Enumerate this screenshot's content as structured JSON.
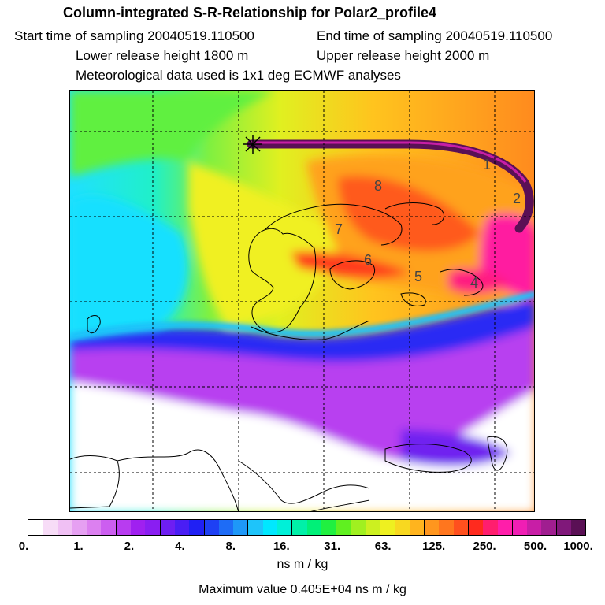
{
  "header": {
    "title": "Column-integrated S-R-Relationship for Polar2_profile4",
    "start_time": "Start time of sampling 20040519.110500",
    "end_time": "End time of sampling 20040519.110500",
    "lower_release": "Lower release height 1800 m",
    "upper_release": "Upper release height 2000 m",
    "met_data": "Meteorological data used is 1x1 deg ECMWF analyses"
  },
  "map": {
    "trajectory_labels": [
      "1",
      "2",
      "4",
      "5",
      "6",
      "7",
      "8"
    ]
  },
  "colorbar": {
    "colors": [
      "#ffffff",
      "#f7dcf7",
      "#f0c0f4",
      "#e6a0f2",
      "#dc80f0",
      "#cc5ef0",
      "#b83cf0",
      "#a020f0",
      "#8a1ef2",
      "#6e1ef2",
      "#4a1ef4",
      "#2020f4",
      "#1e40f4",
      "#1e6cf6",
      "#1e98f8",
      "#1ec4fa",
      "#00e8ff",
      "#00f0d8",
      "#00f0a8",
      "#00f078",
      "#20f040",
      "#60f020",
      "#a0f020",
      "#ccf020",
      "#eef020",
      "#f8d820",
      "#ffb41e",
      "#ff961e",
      "#ff761e",
      "#ff501e",
      "#ff2a1e",
      "#ff1e6e",
      "#ff1eaa",
      "#f01eb4",
      "#c81ea6",
      "#a01e90",
      "#80187a",
      "#5a1055"
    ],
    "tick_labels": [
      "0.",
      "1.",
      "2.",
      "4.",
      "8.",
      "16.",
      "31.",
      "63.",
      "125.",
      "250.",
      "500.",
      "1000."
    ],
    "units": "ns m / kg",
    "max_value": "Maximum value  0.405E+04 ns m / kg"
  }
}
